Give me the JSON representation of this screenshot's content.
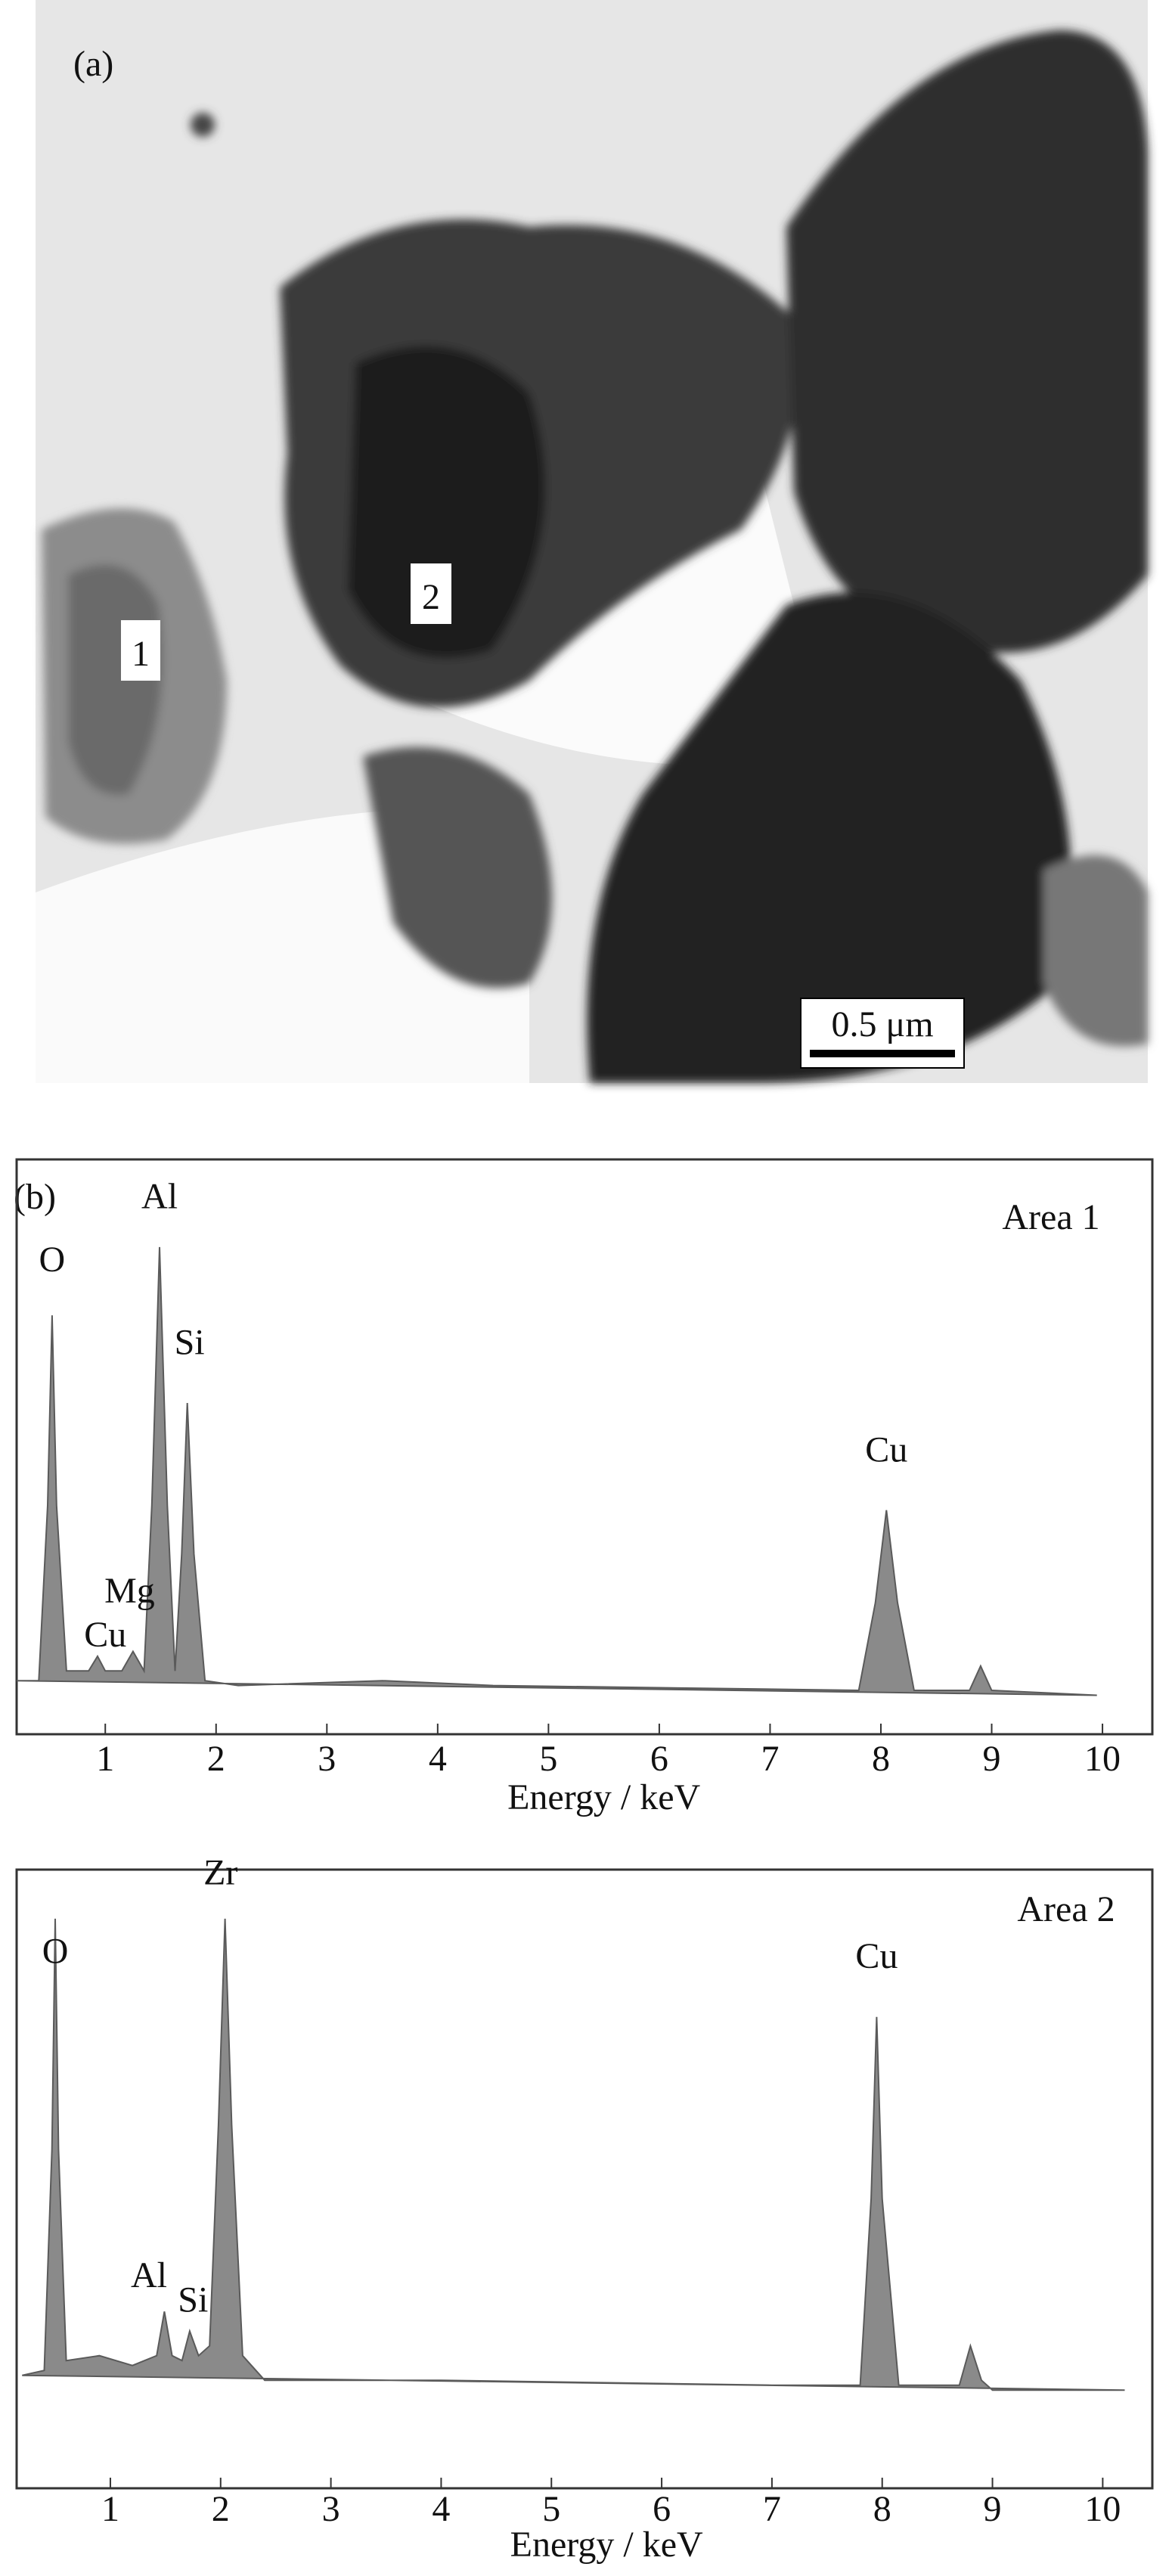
{
  "figure_a": {
    "label": "(a)",
    "areas": [
      "1",
      "2"
    ],
    "scale_bar": "0.5 μm"
  },
  "figure_b_label": "(b)",
  "chart_data": [
    {
      "type": "area",
      "annotation": "Area 1",
      "x_label": "Energy / keV",
      "color": "#8a8a8a",
      "x": [
        0.2,
        0.4,
        0.48,
        0.52,
        0.56,
        0.65,
        0.85,
        0.93,
        1.0,
        1.15,
        1.25,
        1.35,
        1.42,
        1.49,
        1.56,
        1.63,
        1.69,
        1.74,
        1.8,
        1.9,
        2.2,
        3.5,
        4.5,
        7.8,
        7.95,
        8.05,
        8.15,
        8.3,
        8.8,
        8.9,
        9.0,
        9.95
      ],
      "values": [
        4,
        4,
        40,
        79,
        40,
        6,
        6,
        9,
        6,
        6,
        10,
        6,
        40,
        93,
        40,
        6,
        30,
        61,
        30,
        4,
        3,
        4,
        3,
        2,
        20,
        39,
        20,
        2,
        2,
        7,
        2,
        1
      ],
      "peak_labels": [
        "O",
        "Al",
        "Si",
        "Mg",
        "Cu",
        "Cu"
      ],
      "xlim": [
        0.2,
        10.45
      ],
      "ylim": [
        -7,
        111
      ],
      "xticks": [
        1,
        2,
        3,
        4,
        5,
        6,
        7,
        8,
        9,
        10
      ]
    },
    {
      "type": "area",
      "annotation": "Area 2",
      "x_label": "Energy / keV",
      "color": "#8a8a8a",
      "x": [
        0.2,
        0.4,
        0.47,
        0.5,
        0.53,
        0.6,
        0.9,
        1.2,
        1.42,
        1.49,
        1.56,
        1.65,
        1.72,
        1.8,
        1.9,
        1.98,
        2.04,
        2.1,
        2.2,
        2.4,
        4,
        7,
        7.8,
        7.9,
        7.95,
        8.0,
        8.15,
        8.7,
        8.8,
        8.9,
        9.0,
        10.2
      ],
      "values": [
        4,
        5,
        50,
        97,
        50,
        7,
        8,
        6,
        8,
        17,
        8,
        7,
        13,
        8,
        10,
        55,
        97,
        55,
        8,
        3,
        3,
        2,
        2,
        40,
        77,
        40,
        2,
        2,
        10,
        3,
        1,
        1
      ],
      "peak_labels": [
        "O",
        "Zr",
        "Al",
        "Si",
        "Cu"
      ],
      "xlim": [
        0.15,
        10.45
      ],
      "ylim": [
        -19,
        107
      ],
      "xticks": [
        1,
        2,
        3,
        4,
        5,
        6,
        7,
        8,
        9,
        10
      ]
    }
  ]
}
